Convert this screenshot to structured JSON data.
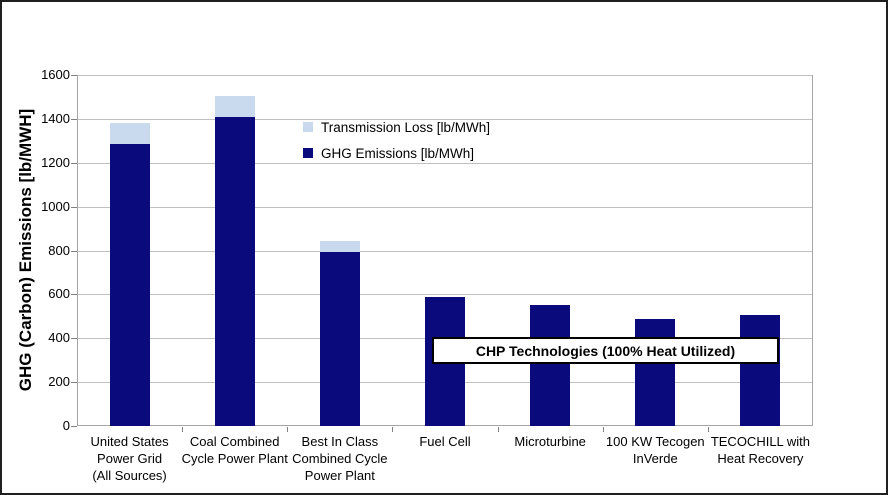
{
  "chart_data": {
    "type": "bar",
    "stacked": true,
    "ylabel": "GHG (Carbon) Emissions [lb/MWH]",
    "ylim": [
      0,
      1600
    ],
    "ytick_step": 200,
    "grid": true,
    "legend_position": "inside-upper-middle",
    "categories": [
      "United States\nPower Grid\n(All Sources)",
      "Coal Combined\nCycle Power Plant",
      "Best In Class\nCombined Cycle\nPower Plant",
      "Fuel Cell",
      "Microturbine",
      "100 KW Tecogen\nInVerde",
      "TECOCHILL with\nHeat Recovery"
    ],
    "series": [
      {
        "name": "GHG Emissions [lb/MWh]",
        "color": "#0a0a7d",
        "values": [
          1285,
          1410,
          795,
          590,
          550,
          490,
          505
        ]
      },
      {
        "name": "Transmission Loss [lb/MWh]",
        "color": "#c9d9ee",
        "values": [
          95,
          95,
          50,
          0,
          0,
          0,
          0
        ]
      }
    ],
    "legend": [
      {
        "label": "Transmission Loss [lb/MWh]",
        "color": "#c9d9ee"
      },
      {
        "label": "GHG Emissions [lb/MWh]",
        "color": "#0a0a7d"
      }
    ],
    "annotation": "CHP Technologies (100% Heat Utilized)"
  },
  "colors": {
    "gridline": "#c0c0c0",
    "plot_border": "#a6a6a6",
    "axis_tick": "#808080",
    "frame_border": "#1f1f1f",
    "background": "#ffffff"
  }
}
